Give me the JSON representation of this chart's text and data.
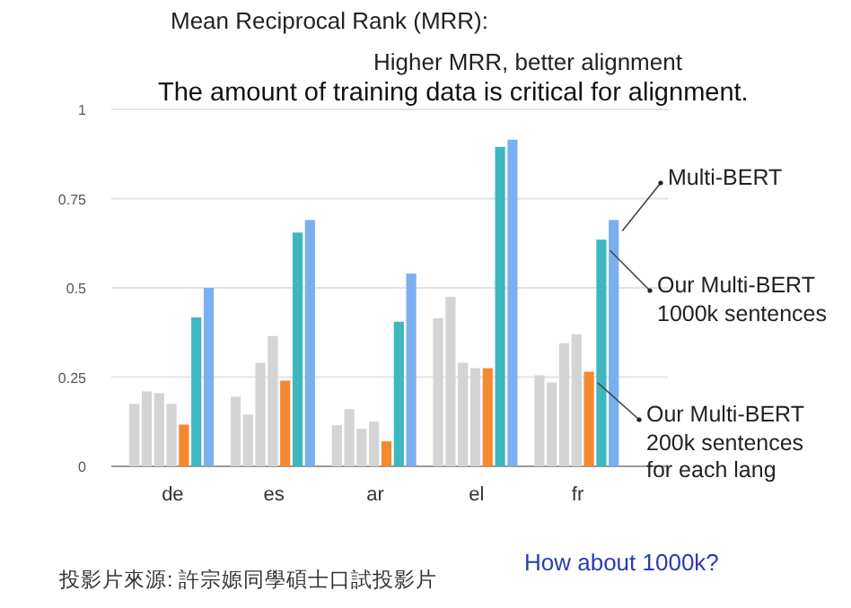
{
  "chart_data": {
    "type": "bar",
    "title": "Mean Reciprocal Rank (MRR):",
    "subtitle": "Higher MRR, better alignment",
    "categories": [
      "de",
      "es",
      "ar",
      "el",
      "fr"
    ],
    "series": [
      {
        "color": "#d4d4d4",
        "values": [
          0.175,
          0.195,
          0.115,
          0.415,
          0.255
        ]
      },
      {
        "color": "#d4d4d4",
        "values": [
          0.21,
          0.145,
          0.16,
          0.475,
          0.235
        ]
      },
      {
        "color": "#d4d4d4",
        "values": [
          0.205,
          0.29,
          0.105,
          0.29,
          0.345
        ]
      },
      {
        "color": "#d4d4d4",
        "values": [
          0.175,
          0.365,
          0.125,
          0.275,
          0.37
        ]
      },
      {
        "name": "Our Multi-BERT 200k sentences for each lang",
        "color": "#f4892f",
        "values": [
          0.117,
          0.24,
          0.07,
          0.275,
          0.265
        ]
      },
      {
        "name": "Our Multi-BERT 1000k sentences",
        "color": "#3db8c0",
        "values": [
          0.417,
          0.655,
          0.405,
          0.895,
          0.635
        ]
      },
      {
        "name": "Multi-BERT",
        "color": "#7cafef",
        "values": [
          0.5,
          0.69,
          0.54,
          0.915,
          0.69
        ]
      }
    ],
    "ylim": [
      0,
      1
    ],
    "yticks": [
      0,
      0.25,
      0.5,
      0.75,
      1
    ],
    "grid": "y",
    "annotations": [
      "The amount of training data is critical for alignment.",
      "投影片來源: 許宗嫄同學碩士口試投影片",
      "How about 1000k?"
    ]
  }
}
